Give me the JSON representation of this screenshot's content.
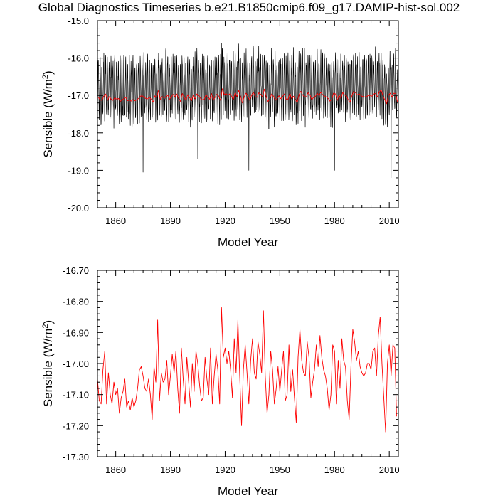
{
  "page": {
    "title": "Global Diagnostics Timeseries b.e21.B1850cmip6.f09_g17.DAMIP-hist-sol.002"
  },
  "colors": {
    "monthly_series": "#000000",
    "annual_series": "#ff0000",
    "axes": "#000000"
  },
  "chart_data": [
    {
      "type": "line",
      "xlabel": "Model Year",
      "ylabel": "Sensible (W/m²)",
      "ylabel_parts": {
        "pre": "Sensible (W/m",
        "sup": "2",
        "post": ")"
      },
      "xlim": [
        1850,
        2015
      ],
      "ylim": [
        -20.0,
        -15.0
      ],
      "xticks": [
        1860,
        1890,
        1920,
        1950,
        1980,
        2010
      ],
      "yticks": [
        -20.0,
        -19.0,
        -18.0,
        -17.0,
        -16.0,
        -15.0
      ],
      "ytick_labels": [
        "-20.0",
        "-19.0",
        "-18.0",
        "-17.0",
        "-16.0",
        "-15.0"
      ],
      "series": [
        {
          "kind": "monthly",
          "color": "#000000",
          "resolution": "monthly",
          "x_start": 1850.0,
          "x_end": 2014.92,
          "typical_peak": -16.3,
          "typical_trough": -18.1,
          "notable_extremes": [
            {
              "x": 1875,
              "y": -19.05
            },
            {
              "x": 1905,
              "y": -18.7
            },
            {
              "x": 1918,
              "y": -15.6
            },
            {
              "x": 1933,
              "y": -19.0
            },
            {
              "x": 1980,
              "y": -19.0
            },
            {
              "x": 2011,
              "y": -19.2
            }
          ]
        },
        {
          "kind": "annual",
          "color": "#ff0000",
          "resolution": "annual",
          "values_ref": "annual_sensible"
        }
      ]
    },
    {
      "type": "line",
      "xlabel": "Model Year",
      "ylabel": "Sensible (W/m²)",
      "ylabel_parts": {
        "pre": "Sensible (W/m",
        "sup": "2",
        "post": ")"
      },
      "xlim": [
        1850,
        2015
      ],
      "ylim": [
        -17.3,
        -16.7
      ],
      "xticks": [
        1860,
        1890,
        1920,
        1950,
        1980,
        2010
      ],
      "yticks": [
        -17.3,
        -17.2,
        -17.1,
        -17.0,
        -16.9,
        -16.8,
        -16.7
      ],
      "ytick_labels": [
        "-17.30",
        "-17.20",
        "-17.10",
        "-17.00",
        "-16.90",
        "-16.80",
        "-16.70"
      ],
      "series": [
        {
          "kind": "annual",
          "color": "#ff0000",
          "resolution": "annual",
          "values_ref": "annual_sensible"
        }
      ]
    }
  ],
  "annual_sensible": {
    "x_start": 1850,
    "x_step": 1,
    "values": [
      -17.05,
      -17.12,
      -17.13,
      -17.02,
      -16.96,
      -17.13,
      -17.03,
      -17.1,
      -17.13,
      -17.06,
      -17.1,
      -17.08,
      -17.16,
      -17.11,
      -17.09,
      -17.05,
      -17.14,
      -17.12,
      -17.15,
      -17.11,
      -17.14,
      -17.12,
      -17.08,
      -17.02,
      -17.01,
      -17.04,
      -17.08,
      -17.09,
      -17.05,
      -17.1,
      -17.18,
      -17.01,
      -17.06,
      -16.86,
      -17.12,
      -17.03,
      -17.06,
      -17.05,
      -16.99,
      -17.1,
      -17.04,
      -16.97,
      -17.03,
      -16.96,
      -17.08,
      -17.16,
      -16.95,
      -17.05,
      -17.13,
      -16.98,
      -17.06,
      -17.14,
      -17.0,
      -17.09,
      -16.96,
      -17.0,
      -17.07,
      -17.12,
      -17.11,
      -16.98,
      -17.05,
      -17.1,
      -16.95,
      -17.13,
      -17.04,
      -16.97,
      -17.02,
      -17.13,
      -16.82,
      -16.98,
      -16.95,
      -17.0,
      -16.96,
      -17.02,
      -17.11,
      -16.92,
      -17.03,
      -16.86,
      -17.04,
      -17.2,
      -17.02,
      -16.94,
      -17.03,
      -17.13,
      -16.99,
      -16.92,
      -17.03,
      -17.05,
      -16.93,
      -16.97,
      -17.03,
      -16.83,
      -17.04,
      -17.16,
      -17.1,
      -16.96,
      -17.02,
      -17.13,
      -17.08,
      -17.01,
      -17.09,
      -17.02,
      -16.96,
      -17.12,
      -17.1,
      -16.94,
      -17.09,
      -17.02,
      -17.11,
      -17.19,
      -16.98,
      -16.89,
      -16.99,
      -17.03,
      -17.04,
      -16.93,
      -16.98,
      -17.11,
      -17.06,
      -17.02,
      -16.94,
      -17.01,
      -16.91,
      -16.98,
      -17.02,
      -17.04,
      -17.08,
      -17.15,
      -17.1,
      -16.94,
      -16.96,
      -17.13,
      -16.99,
      -17.08,
      -16.92,
      -16.99,
      -17.01,
      -17.12,
      -17.18,
      -17.01,
      -16.89,
      -16.93,
      -16.99,
      -16.96,
      -17.01,
      -17.03,
      -17.04,
      -17.03,
      -17.0,
      -17.0,
      -17.02,
      -16.96,
      -16.95,
      -17.04,
      -16.91,
      -16.85,
      -17.0,
      -17.11,
      -17.22,
      -17.0,
      -16.94,
      -17.04,
      -16.94,
      -16.95,
      -17.17
    ]
  }
}
